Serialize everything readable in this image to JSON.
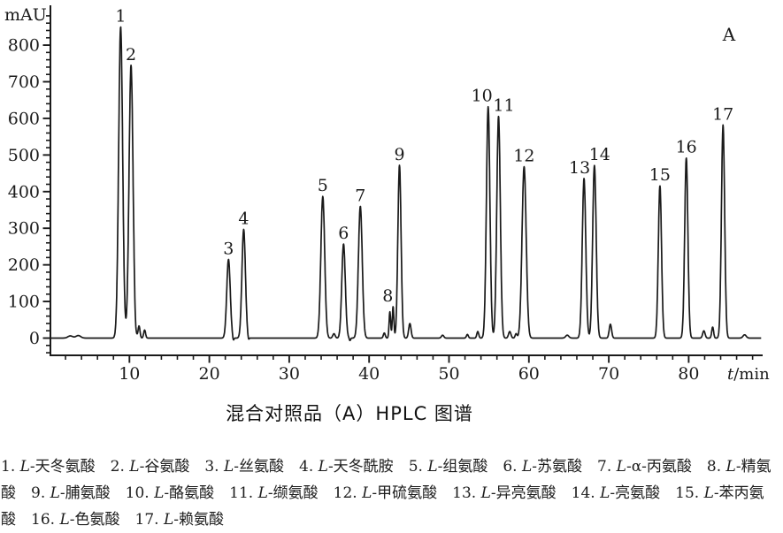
{
  "figure": {
    "caption": "混合对照品（A）HPLC 图谱",
    "panel_label": "A"
  },
  "chart_data": {
    "type": "line",
    "title": "混合对照品（A）HPLC 图谱",
    "xlabel": "t/min",
    "ylabel": "mAU",
    "xlim": [
      0,
      89
    ],
    "ylim": [
      -50,
      900
    ],
    "x_ticks_major": [
      10,
      20,
      30,
      40,
      50,
      60,
      70,
      80
    ],
    "x_tick_minor_step": 2,
    "y_ticks_major": [
      0,
      100,
      200,
      300,
      400,
      500,
      600,
      700,
      800
    ],
    "y_tick_minor_step": 20,
    "grid": false,
    "legend_position": "none",
    "panel_label": "A",
    "peaks": [
      {
        "label": "1",
        "t_min": 8.9,
        "height_mau": 850,
        "sigma": 0.25
      },
      {
        "label": "2",
        "t_min": 10.2,
        "height_mau": 745,
        "sigma": 0.25
      },
      {
        "label": "3",
        "t_min": 22.4,
        "height_mau": 215,
        "sigma": 0.22
      },
      {
        "label": "4",
        "t_min": 24.3,
        "height_mau": 297,
        "sigma": 0.22
      },
      {
        "label": "5",
        "t_min": 34.2,
        "height_mau": 387,
        "sigma": 0.24
      },
      {
        "label": "6",
        "t_min": 36.8,
        "height_mau": 257,
        "sigma": 0.22
      },
      {
        "label": "7",
        "t_min": 38.9,
        "height_mau": 360,
        "sigma": 0.24
      },
      {
        "label": "8",
        "t_min": 43.0,
        "height_mau": 86,
        "sigma": 0.1,
        "label_dx": -6
      },
      {
        "label": "9",
        "t_min": 43.8,
        "height_mau": 472,
        "sigma": 0.2
      },
      {
        "label": "10",
        "t_min": 54.9,
        "height_mau": 632,
        "sigma": 0.22,
        "label_dx": -7
      },
      {
        "label": "11",
        "t_min": 56.2,
        "height_mau": 606,
        "sigma": 0.22,
        "label_dx": 6
      },
      {
        "label": "12",
        "t_min": 59.4,
        "height_mau": 468,
        "sigma": 0.26
      },
      {
        "label": "13",
        "t_min": 66.9,
        "height_mau": 436,
        "sigma": 0.22,
        "label_dx": -5
      },
      {
        "label": "14",
        "t_min": 68.2,
        "height_mau": 472,
        "sigma": 0.22,
        "label_dx": 6
      },
      {
        "label": "15",
        "t_min": 76.4,
        "height_mau": 416,
        "sigma": 0.2
      },
      {
        "label": "16",
        "t_min": 79.7,
        "height_mau": 492,
        "sigma": 0.2
      },
      {
        "label": "17",
        "t_min": 84.3,
        "height_mau": 582,
        "sigma": 0.2
      }
    ],
    "baseline_features": [
      [
        2.6,
        6,
        0.3
      ],
      [
        3.6,
        7,
        0.3
      ],
      [
        10.75,
        -12,
        0.08
      ],
      [
        11.2,
        33,
        0.12
      ],
      [
        11.9,
        22,
        0.12
      ],
      [
        23.0,
        -9,
        0.08
      ],
      [
        24.9,
        -8,
        0.08
      ],
      [
        35.6,
        12,
        0.15
      ],
      [
        37.6,
        -7,
        0.08
      ],
      [
        41.9,
        14,
        0.12
      ],
      [
        42.6,
        72,
        0.1
      ],
      [
        45.1,
        40,
        0.15
      ],
      [
        49.2,
        8,
        0.15
      ],
      [
        52.3,
        10,
        0.12
      ],
      [
        53.6,
        18,
        0.12
      ],
      [
        57.6,
        18,
        0.15
      ],
      [
        58.4,
        12,
        0.12
      ],
      [
        64.8,
        8,
        0.2
      ],
      [
        70.2,
        38,
        0.15
      ],
      [
        81.9,
        20,
        0.15
      ],
      [
        83.0,
        30,
        0.12
      ],
      [
        87.0,
        9,
        0.2
      ]
    ]
  },
  "legend": {
    "chirality_prefix": "L",
    "items": [
      {
        "num": "1",
        "name": "天冬氨酸"
      },
      {
        "num": "2",
        "name": "谷氨酸"
      },
      {
        "num": "3",
        "name": "丝氨酸"
      },
      {
        "num": "4",
        "name": "天冬酰胺"
      },
      {
        "num": "5",
        "name": "组氨酸"
      },
      {
        "num": "6",
        "name": "苏氨酸"
      },
      {
        "num": "7",
        "name": "α-丙氨酸"
      },
      {
        "num": "8",
        "name": "精氨酸"
      },
      {
        "num": "9",
        "name": "脯氨酸"
      },
      {
        "num": "10",
        "name": "酪氨酸"
      },
      {
        "num": "11",
        "name": "缬氨酸"
      },
      {
        "num": "12",
        "name": "甲硫氨酸"
      },
      {
        "num": "13",
        "name": "异亮氨酸"
      },
      {
        "num": "14",
        "name": "亮氨酸"
      },
      {
        "num": "15",
        "name": "苯丙氨酸"
      },
      {
        "num": "16",
        "name": "色氨酸"
      },
      {
        "num": "17",
        "name": "赖氨酸"
      }
    ]
  }
}
